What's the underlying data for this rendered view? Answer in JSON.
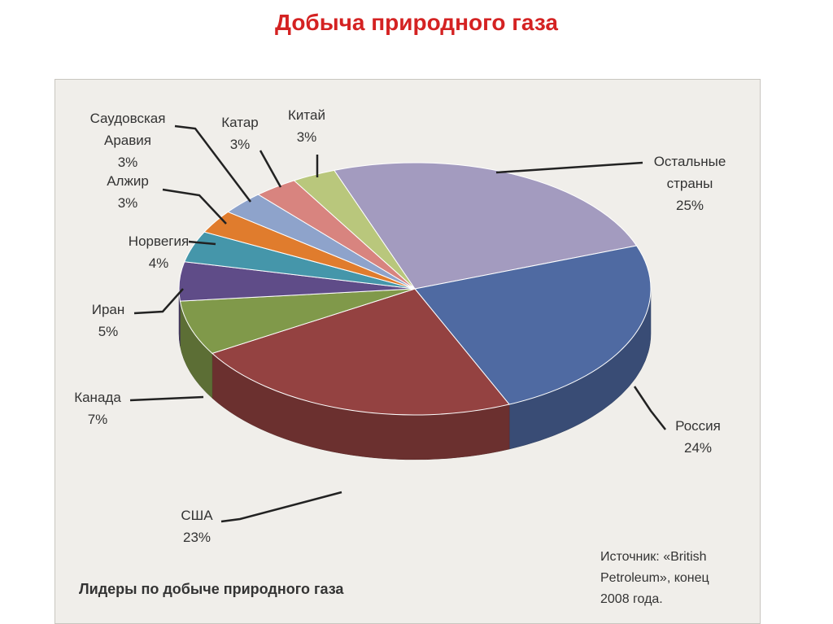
{
  "chart_data": {
    "type": "pie3d",
    "title": "Добыча природного газа",
    "subtitle": "Лидеры по добыче природного газа",
    "source": "Источник: «British Petroleum», конец 2008 года.",
    "categories": [
      "Остальные страны",
      "Россия",
      "США",
      "Канада",
      "Иран",
      "Норвегия",
      "Алжир",
      "Саудовская Аравия",
      "Катар",
      "Китай"
    ],
    "values": [
      25,
      24,
      23,
      7,
      5,
      4,
      3,
      3,
      3,
      3
    ],
    "value_labels": [
      "25%",
      "24%",
      "23%",
      "7%",
      "5%",
      "4%",
      "3%",
      "3%",
      "3%",
      "3%"
    ],
    "colors": [
      "#a39bbf",
      "#4f6aa2",
      "#944241",
      "#80994a",
      "#5f4c88",
      "#4596aa",
      "#e07c2d",
      "#8ea3cb",
      "#d8847f",
      "#b9c77c"
    ]
  }
}
